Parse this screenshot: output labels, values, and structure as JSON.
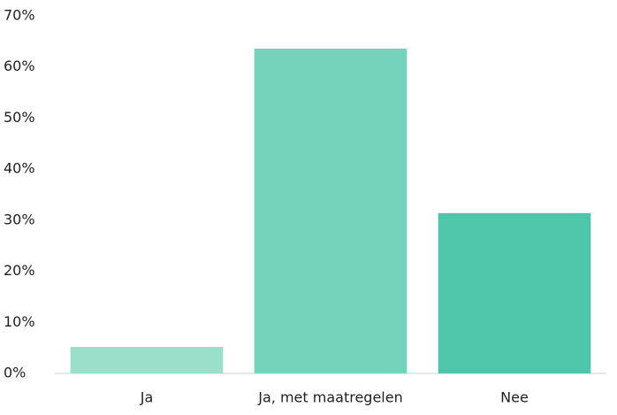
{
  "chart_data": {
    "type": "bar",
    "categories": [
      "Ja",
      "Ja, met maatregelen",
      "Nee"
    ],
    "values": [
      5.2,
      63.6,
      31.4
    ],
    "colors": [
      "#9adfca",
      "#75d3bc",
      "#4fc6aa"
    ],
    "ylim": [
      0,
      70
    ],
    "yticks": [
      {
        "value": 0,
        "label": "0%"
      },
      {
        "value": 10,
        "label": "10%"
      },
      {
        "value": 20,
        "label": "20%"
      },
      {
        "value": 30,
        "label": "30%"
      },
      {
        "value": 40,
        "label": "40%"
      },
      {
        "value": 50,
        "label": "50%"
      },
      {
        "value": 60,
        "label": "60%"
      },
      {
        "value": 70,
        "label": "70%"
      }
    ],
    "grid": false
  }
}
